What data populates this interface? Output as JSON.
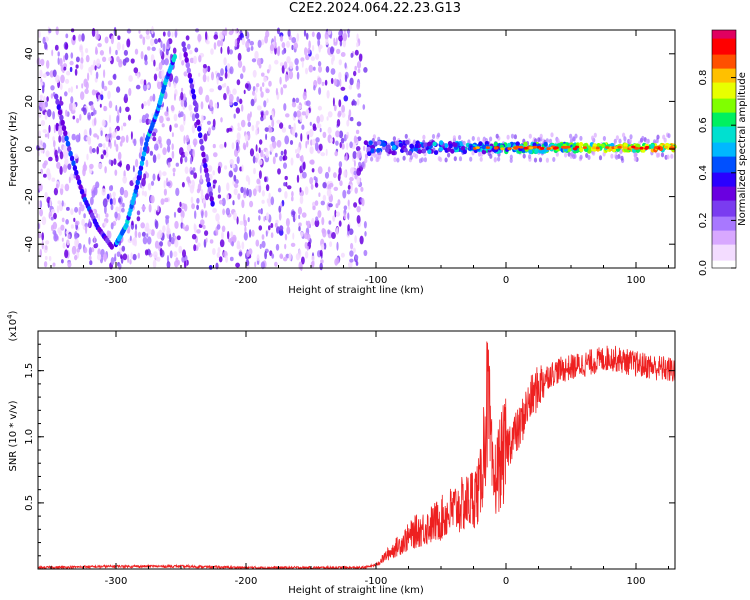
{
  "title": "C2E2.2024.064.22.23.G13",
  "colors": {
    "snr_line": "#ee2020",
    "frame": "#000000",
    "colormap": [
      "#ffffff",
      "#f3dcff",
      "#d8a8ff",
      "#a878ff",
      "#7a3cf0",
      "#6a00e0",
      "#2a00ff",
      "#0050ff",
      "#00b8ff",
      "#00e0d0",
      "#00f060",
      "#80ff00",
      "#e8ff00",
      "#ffc000",
      "#ff5000",
      "#ff0000",
      "#e00060"
    ]
  },
  "chart_data": [
    {
      "type": "heatmap",
      "title": "",
      "xlabel": "Height of straight line (km)",
      "ylabel": "Frequency (Hz)",
      "xlim": [
        -360,
        130
      ],
      "ylim": [
        -50,
        50
      ],
      "x_ticks": [
        -300,
        -200,
        -100,
        0,
        100
      ],
      "y_ticks": [
        -40,
        -20,
        0,
        20,
        40
      ],
      "colorbar": {
        "label": "Normalized spectral amplitude",
        "range": [
          0,
          1
        ],
        "ticks": [
          "0.0",
          "0.2",
          "0.4",
          "0.6",
          "0.8"
        ]
      },
      "features": [
        {
          "kind": "noise",
          "x_range": [
            -360,
            -108
          ],
          "amplitude": 0.2
        },
        {
          "kind": "line",
          "points": [
            [
              -346,
              22
            ],
            [
              -336,
              0
            ],
            [
              -325,
              -20
            ],
            [
              -314,
              -33
            ],
            [
              -302,
              -42
            ]
          ],
          "amplitude": 0.35
        },
        {
          "kind": "line",
          "points": [
            [
              -300,
              -40
            ],
            [
              -292,
              -32
            ],
            [
              -284,
              -16
            ],
            [
              -276,
              4
            ],
            [
              -268,
              16
            ],
            [
              -262,
              28
            ],
            [
              -254,
              40
            ]
          ],
          "amplitude": 0.45
        },
        {
          "kind": "line",
          "points": [
            [
              -248,
              44
            ],
            [
              -240,
              22
            ],
            [
              -232,
              -5
            ],
            [
              -225,
              -25
            ]
          ],
          "amplitude": 0.3
        },
        {
          "kind": "band",
          "x_range": [
            -108,
            130
          ],
          "center_hz": 0.5,
          "amplitude": 0.85
        }
      ]
    },
    {
      "type": "line",
      "title": "",
      "xlabel": "Height of straight line (km)",
      "ylabel": "SNR (10 * v/v)",
      "y_multiplier": "(x10",
      "y_multiplier_exp": "4",
      "xlim": [
        -360,
        130
      ],
      "ylim": [
        0,
        1.8
      ],
      "x_ticks": [
        -300,
        -200,
        -100,
        0,
        100
      ],
      "y_ticks": [
        0.5,
        1.0,
        1.5
      ],
      "y_tick_labels": [
        "0.5",
        "1.0",
        "1.5"
      ],
      "series": [
        {
          "x": [
            -360,
            -300,
            -250,
            -200,
            -150,
            -110,
            -100,
            -90,
            -80,
            -70,
            -60,
            -50,
            -40,
            -30,
            -20,
            -14,
            -10,
            -5,
            0,
            5,
            10,
            15,
            20,
            30,
            40,
            60,
            80,
            100,
            130
          ],
          "y": [
            0.01,
            0.02,
            0.02,
            0.01,
            0.01,
            0.01,
            0.03,
            0.12,
            0.2,
            0.28,
            0.32,
            0.38,
            0.45,
            0.5,
            0.6,
            1.3,
            0.62,
            0.8,
            0.9,
            1.0,
            1.05,
            1.2,
            1.3,
            1.45,
            1.5,
            1.55,
            1.6,
            1.55,
            1.5
          ]
        }
      ]
    }
  ]
}
